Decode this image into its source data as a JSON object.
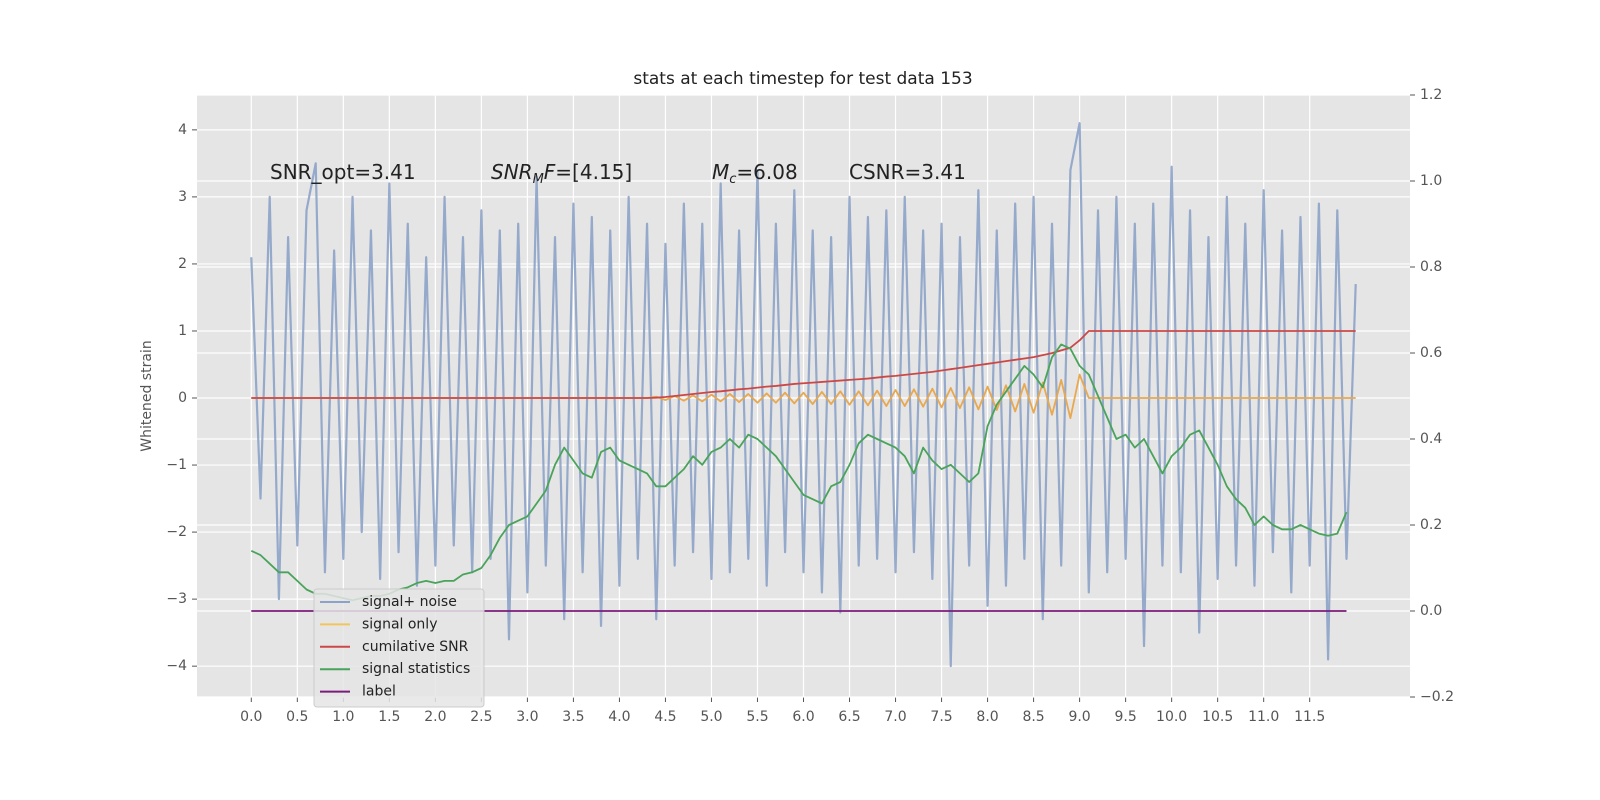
{
  "chart_data": {
    "type": "line",
    "title": "stats at each timestep for test data 153",
    "ylabel": "Whitened strain",
    "x": [
      0,
      0.1,
      0.2,
      0.3,
      0.4,
      0.5,
      0.6,
      0.7,
      0.8,
      0.9,
      1,
      1.1,
      1.2,
      1.3,
      1.4,
      1.5,
      1.6,
      1.7,
      1.8,
      1.9,
      2,
      2.1,
      2.2,
      2.3,
      2.4,
      2.5,
      2.6,
      2.7,
      2.8,
      2.9,
      3,
      3.1,
      3.2,
      3.3,
      3.4,
      3.5,
      3.6,
      3.7,
      3.8,
      3.9,
      4,
      4.1,
      4.2,
      4.3,
      4.4,
      4.5,
      4.6,
      4.7,
      4.8,
      4.9,
      5,
      5.1,
      5.2,
      5.3,
      5.4,
      5.5,
      5.6,
      5.7,
      5.8,
      5.9,
      6,
      6.1,
      6.2,
      6.3,
      6.4,
      6.5,
      6.6,
      6.7,
      6.8,
      6.9,
      7,
      7.1,
      7.2,
      7.3,
      7.4,
      7.5,
      7.6,
      7.7,
      7.8,
      7.9,
      8,
      8.1,
      8.2,
      8.3,
      8.4,
      8.5,
      8.6,
      8.7,
      8.8,
      8.9,
      9,
      9.1,
      9.2,
      9.3,
      9.4,
      9.5,
      9.6,
      9.7,
      9.8,
      9.9,
      10,
      10.1,
      10.2,
      10.3,
      10.4,
      10.5,
      10.6,
      10.7,
      10.8,
      10.9,
      11,
      11.1,
      11.2,
      11.3,
      11.4,
      11.5,
      11.6,
      11.7,
      11.8,
      11.9,
      12
    ],
    "series": [
      {
        "name": "signal+ noise",
        "color": "#8ca2c8",
        "axis": "y",
        "values": [
          2.1,
          -1.5,
          3.0,
          -3.0,
          2.4,
          -2.2,
          2.8,
          3.5,
          -2.6,
          2.2,
          -2.4,
          3.0,
          -2.0,
          2.5,
          -2.7,
          3.2,
          -2.3,
          2.6,
          -2.8,
          2.1,
          -2.5,
          3.0,
          -2.2,
          2.4,
          -2.6,
          2.8,
          -2.4,
          2.5,
          -3.6,
          2.6,
          -2.9,
          3.3,
          -2.5,
          2.4,
          -3.3,
          2.9,
          -2.6,
          2.7,
          -3.4,
          2.5,
          -2.8,
          3.0,
          -2.4,
          2.6,
          -3.3,
          2.3,
          -2.5,
          2.9,
          -2.3,
          2.6,
          -2.7,
          3.2,
          -2.6,
          2.5,
          -2.4,
          3.4,
          -2.8,
          2.6,
          -2.3,
          3.1,
          -2.6,
          2.5,
          -2.9,
          2.4,
          -3.2,
          3.0,
          -2.5,
          2.7,
          -2.4,
          2.8,
          -2.6,
          3.0,
          -2.3,
          2.5,
          -2.7,
          2.6,
          -4.0,
          2.4,
          -2.5,
          3.1,
          -3.1,
          2.5,
          -2.8,
          2.9,
          -2.4,
          3.0,
          -3.3,
          2.6,
          -2.5,
          3.4,
          4.1,
          -2.9,
          2.8,
          -2.6,
          3.0,
          -2.4,
          2.6,
          -3.7,
          2.9,
          -2.5,
          3.45,
          -2.6,
          2.8,
          -3.5,
          2.4,
          -2.7,
          3.0,
          -2.5,
          2.6,
          -2.8,
          3.1,
          -2.3,
          2.5,
          -2.9,
          2.7,
          -2.5,
          2.9,
          -3.9,
          2.8,
          -2.4,
          1.7
        ]
      },
      {
        "name": "signal only",
        "color": "#e8a84f",
        "legend_color": "#f2c55c",
        "axis": "y",
        "values": [
          0,
          0,
          0,
          0,
          0,
          0,
          0,
          0,
          0,
          0,
          0,
          0,
          0,
          0,
          0,
          0,
          0,
          0,
          0,
          0,
          0,
          0,
          0,
          0,
          0,
          0,
          0,
          0,
          0,
          0,
          0,
          0,
          0,
          0,
          0,
          0,
          0,
          0,
          0,
          0,
          0,
          0,
          0,
          0,
          0.02,
          -0.03,
          0.03,
          -0.04,
          0.04,
          -0.05,
          0.05,
          -0.05,
          0.06,
          -0.06,
          0.06,
          -0.07,
          0.07,
          -0.07,
          0.08,
          -0.08,
          0.08,
          -0.09,
          0.09,
          -0.09,
          0.1,
          -0.1,
          0.1,
          -0.11,
          0.11,
          -0.12,
          0.12,
          -0.12,
          0.13,
          -0.13,
          0.14,
          -0.14,
          0.15,
          -0.15,
          0.16,
          -0.17,
          0.17,
          -0.18,
          0.19,
          -0.2,
          0.21,
          -0.22,
          0.23,
          -0.25,
          0.27,
          -0.3,
          0.35,
          0,
          0,
          0,
          0,
          0,
          0,
          0,
          0,
          0,
          0,
          0,
          0,
          0,
          0,
          0,
          0,
          0,
          0,
          0,
          0,
          0,
          0,
          0,
          0,
          0,
          0,
          0,
          0,
          0,
          0
        ]
      },
      {
        "name": "cumilative SNR",
        "color": "#cc4848",
        "axis": "y",
        "values": [
          0,
          0,
          0,
          0,
          0,
          0,
          0,
          0,
          0,
          0,
          0,
          0,
          0,
          0,
          0,
          0,
          0,
          0,
          0,
          0,
          0,
          0,
          0,
          0,
          0,
          0,
          0,
          0,
          0,
          0,
          0,
          0,
          0,
          0,
          0,
          0,
          0,
          0,
          0,
          0,
          0,
          0,
          0,
          0,
          0.005,
          0.015,
          0.03,
          0.045,
          0.06,
          0.075,
          0.09,
          0.1,
          0.115,
          0.13,
          0.14,
          0.155,
          0.17,
          0.18,
          0.195,
          0.21,
          0.22,
          0.23,
          0.24,
          0.25,
          0.26,
          0.27,
          0.28,
          0.29,
          0.305,
          0.32,
          0.33,
          0.345,
          0.36,
          0.375,
          0.39,
          0.41,
          0.43,
          0.45,
          0.47,
          0.49,
          0.51,
          0.53,
          0.55,
          0.57,
          0.59,
          0.61,
          0.64,
          0.67,
          0.71,
          0.75,
          0.86,
          1,
          1,
          1,
          1,
          1,
          1,
          1,
          1,
          1,
          1,
          1,
          1,
          1,
          1,
          1,
          1,
          1,
          1,
          1,
          1,
          1,
          1,
          1,
          1,
          1,
          1,
          1,
          1,
          1,
          1
        ]
      },
      {
        "name": "signal statistics",
        "color": "#4aa35a",
        "axis": "y2",
        "values": [
          0.14,
          0.13,
          0.11,
          0.09,
          0.09,
          0.07,
          0.05,
          0.04,
          0.04,
          0.035,
          0.03,
          0.025,
          0.03,
          0.035,
          0.035,
          0.04,
          0.05,
          0.055,
          0.065,
          0.07,
          0.065,
          0.07,
          0.07,
          0.085,
          0.09,
          0.1,
          0.13,
          0.17,
          0.2,
          0.21,
          0.22,
          0.25,
          0.28,
          0.34,
          0.38,
          0.35,
          0.32,
          0.31,
          0.37,
          0.38,
          0.35,
          0.34,
          0.33,
          0.32,
          0.29,
          0.29,
          0.31,
          0.33,
          0.36,
          0.34,
          0.37,
          0.38,
          0.4,
          0.38,
          0.41,
          0.4,
          0.38,
          0.36,
          0.33,
          0.3,
          0.27,
          0.26,
          0.25,
          0.29,
          0.3,
          0.34,
          0.39,
          0.41,
          0.4,
          0.39,
          0.38,
          0.36,
          0.32,
          0.38,
          0.35,
          0.33,
          0.34,
          0.32,
          0.3,
          0.32,
          0.43,
          0.48,
          0.51,
          0.54,
          0.57,
          0.55,
          0.52,
          0.59,
          0.62,
          0.61,
          0.57,
          0.55,
          0.5,
          0.45,
          0.4,
          0.41,
          0.38,
          0.4,
          0.36,
          0.32,
          0.36,
          0.38,
          0.41,
          0.42,
          0.38,
          0.34,
          0.29,
          0.26,
          0.24,
          0.2,
          0.22,
          0.2,
          0.19,
          0.19,
          0.2,
          0.19,
          0.18,
          0.175,
          0.18,
          0.23,
          null
        ]
      },
      {
        "name": "label",
        "color": "#7b1c7b",
        "axis": "y2",
        "values": [
          0,
          0,
          0,
          0,
          0,
          0,
          0,
          0,
          0,
          0,
          0,
          0,
          0,
          0,
          0,
          0,
          0,
          0,
          0,
          0,
          0,
          0,
          0,
          0,
          0,
          0,
          0,
          0,
          0,
          0,
          0,
          0,
          0,
          0,
          0,
          0,
          0,
          0,
          0,
          0,
          0,
          0,
          0,
          0,
          0,
          0,
          0,
          0,
          0,
          0,
          0,
          0,
          0,
          0,
          0,
          0,
          0,
          0,
          0,
          0,
          0,
          0,
          0,
          0,
          0,
          0,
          0,
          0,
          0,
          0,
          0,
          0,
          0,
          0,
          0,
          0,
          0,
          0,
          0,
          0,
          0,
          0,
          0,
          0,
          0,
          0,
          0,
          0,
          0,
          0,
          0,
          0,
          0,
          0,
          0,
          0,
          0,
          0,
          0,
          0,
          0,
          0,
          0,
          0,
          0,
          0,
          0,
          0,
          0,
          0,
          0,
          0,
          0,
          0,
          0,
          0,
          0,
          0,
          0,
          0,
          null
        ]
      }
    ],
    "xlim": [
      -0.59,
      12.59
    ],
    "xticks": [
      {
        "value": 0,
        "label": "0.0"
      },
      {
        "value": 0.5,
        "label": "0.5"
      },
      {
        "value": 1,
        "label": "1.0"
      },
      {
        "value": 1.5,
        "label": "1.5"
      },
      {
        "value": 2,
        "label": "2.0"
      },
      {
        "value": 2.5,
        "label": "2.5"
      },
      {
        "value": 3,
        "label": "3.0"
      },
      {
        "value": 3.5,
        "label": "3.5"
      },
      {
        "value": 4,
        "label": "4.0"
      },
      {
        "value": 4.5,
        "label": "4.5"
      },
      {
        "value": 5,
        "label": "5.0"
      },
      {
        "value": 5.5,
        "label": "5.5"
      },
      {
        "value": 6,
        "label": "6.0"
      },
      {
        "value": 6.5,
        "label": "6.5"
      },
      {
        "value": 7,
        "label": "7.0"
      },
      {
        "value": 7.5,
        "label": "7.5"
      },
      {
        "value": 8,
        "label": "8.0"
      },
      {
        "value": 8.5,
        "label": "8.5"
      },
      {
        "value": 9,
        "label": "9.0"
      },
      {
        "value": 9.5,
        "label": "9.5"
      },
      {
        "value": 10,
        "label": "10.0"
      },
      {
        "value": 10.5,
        "label": "10.5"
      },
      {
        "value": 11,
        "label": "11.0"
      },
      {
        "value": 11.5,
        "label": "11.5"
      }
    ],
    "ylim": [
      -4.46,
      4.52
    ],
    "yticks": [
      {
        "value": -4,
        "label": "−4"
      },
      {
        "value": -3,
        "label": "−3"
      },
      {
        "value": -2,
        "label": "−2"
      },
      {
        "value": -1,
        "label": "−1"
      },
      0,
      1,
      2,
      3,
      4
    ],
    "y2lim": [
      -0.2,
      1.2
    ],
    "y2ticks": [
      {
        "value": -0.2,
        "label": "−0.2"
      },
      {
        "value": 0,
        "label": "0.0"
      },
      0.2,
      0.4,
      0.6,
      0.8,
      {
        "value": 1,
        "label": "1.0"
      },
      1.2
    ],
    "grid": true,
    "legend": "lower left",
    "annotations": [
      {
        "parts": [
          {
            "text": "SNR_opt=3.41"
          }
        ]
      },
      {
        "parts": [
          {
            "text": "SNR",
            "italic": true
          },
          {
            "text": "M",
            "italic": true,
            "sub": true
          },
          {
            "text": "F",
            "italic": true
          },
          {
            "text": "=[4.15]"
          }
        ]
      },
      {
        "parts": [
          {
            "text": "M",
            "italic": true
          },
          {
            "text": "c",
            "italic": true,
            "sub": true
          },
          {
            "text": "=6.08"
          }
        ]
      },
      {
        "parts": [
          {
            "text": "CSNR=3.41"
          }
        ]
      }
    ]
  }
}
